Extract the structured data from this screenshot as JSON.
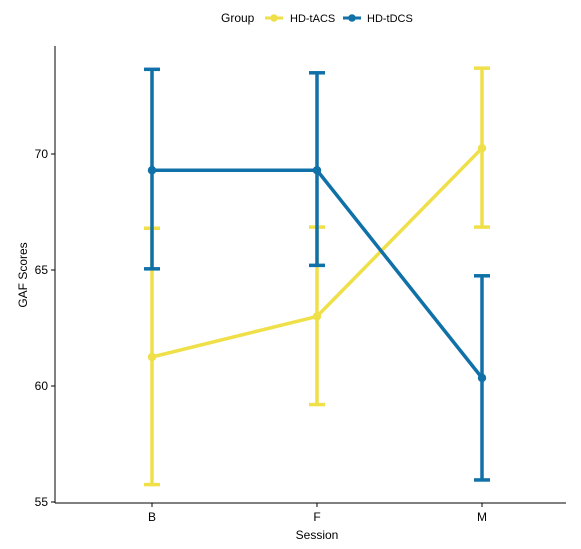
{
  "chart_data": {
    "type": "line",
    "title": "",
    "xlabel": "Session",
    "ylabel": "GAF Scores",
    "categories": [
      "B",
      "F",
      "M"
    ],
    "ylim": [
      55,
      74
    ],
    "yticks": [
      55,
      60,
      65,
      70
    ],
    "grid": false,
    "legend": {
      "title": "Group",
      "placement": "top"
    },
    "series": [
      {
        "name": "HD-tACS",
        "color": "#EFE04A",
        "values": [
          61.25,
          63.0,
          70.25
        ],
        "error_low": [
          55.75,
          59.2,
          66.85
        ],
        "error_high": [
          66.8,
          66.85,
          73.7
        ]
      },
      {
        "name": "HD-tDCS",
        "color": "#1070A8",
        "values": [
          69.3,
          69.3,
          60.35
        ],
        "error_low": [
          65.05,
          65.2,
          55.95
        ],
        "error_high": [
          73.65,
          73.5,
          64.75
        ]
      }
    ]
  }
}
